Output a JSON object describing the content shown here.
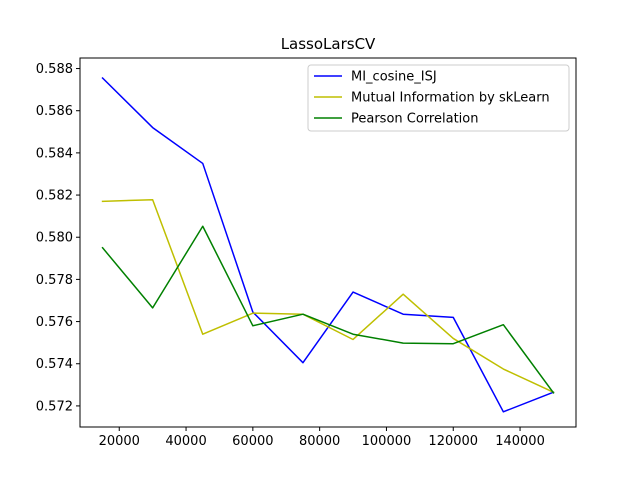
{
  "chart_data": {
    "type": "line",
    "title": "LassoLarsCV",
    "xlabel": "",
    "ylabel": "",
    "x": [
      15000,
      30000,
      45000,
      60000,
      75000,
      90000,
      105000,
      120000,
      135000,
      150000
    ],
    "xlim": [
      8250,
      156750
    ],
    "ylim": [
      0.571,
      0.5885
    ],
    "xticks": [
      20000,
      40000,
      60000,
      80000,
      100000,
      120000,
      140000
    ],
    "xtick_labels": [
      "20000",
      "40000",
      "60000",
      "80000",
      "100000",
      "120000",
      "140000"
    ],
    "yticks": [
      0.572,
      0.574,
      0.576,
      0.578,
      0.58,
      0.582,
      0.584,
      0.586,
      0.588
    ],
    "ytick_labels": [
      "0.572",
      "0.574",
      "0.576",
      "0.578",
      "0.580",
      "0.582",
      "0.584",
      "0.586",
      "0.588"
    ],
    "grid": false,
    "legend_position": "top-right",
    "series": [
      {
        "name": "MI_cosine_ISJ",
        "color": "#0000ff",
        "values": [
          0.58755,
          0.5852,
          0.5835,
          0.57645,
          0.57405,
          0.5774,
          0.57635,
          0.5762,
          0.57172,
          0.57265
        ]
      },
      {
        "name": "Mutual Information by skLearn",
        "color": "#bfbf00",
        "values": [
          0.5817,
          0.58178,
          0.5754,
          0.5764,
          0.57635,
          0.57515,
          0.5773,
          0.5752,
          0.57375,
          0.57265
        ]
      },
      {
        "name": "Pearson Correlation",
        "color": "#008000",
        "values": [
          0.5795,
          0.57665,
          0.58052,
          0.5758,
          0.57635,
          0.5754,
          0.57498,
          0.57495,
          0.57585,
          0.57262
        ]
      }
    ]
  }
}
